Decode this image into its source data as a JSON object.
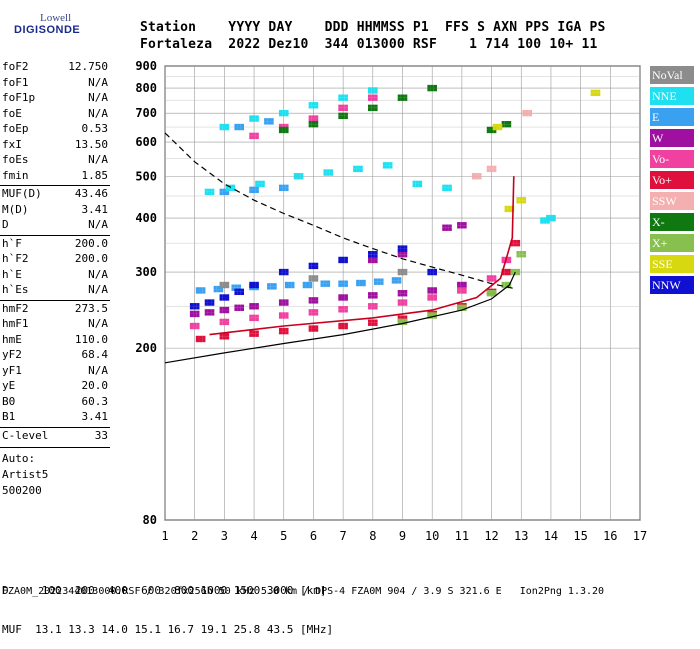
{
  "logo": {
    "top": "Lowell",
    "bottom": "DIGISONDE"
  },
  "header": {
    "labels_line": "Station    YYYY DAY    DDD HHMMSS P1  FFS S AXN PPS IGA PS",
    "values_line": "Fortaleza  2022 Dez10  344 013000 RSF    1 714 100 10+ 11"
  },
  "params": [
    {
      "name": "foF2",
      "value": "12.750"
    },
    {
      "name": "foF1",
      "value": "N/A"
    },
    {
      "name": "foF1p",
      "value": "N/A"
    },
    {
      "name": "foE",
      "value": "N/A"
    },
    {
      "name": "foEp",
      "value": "0.53"
    },
    {
      "name": "fxI",
      "value": "13.50"
    },
    {
      "name": "foEs",
      "value": "N/A"
    },
    {
      "name": "fmin",
      "value": "1.85"
    },
    {
      "name": "MUF(D)",
      "value": "43.46"
    },
    {
      "name": "M(D)",
      "value": "3.41"
    },
    {
      "name": "D",
      "value": "N/A"
    },
    {
      "name": "h`F",
      "value": "200.0"
    },
    {
      "name": "h`F2",
      "value": "200.0"
    },
    {
      "name": "h`E",
      "value": "N/A"
    },
    {
      "name": "h`Es",
      "value": "N/A"
    },
    {
      "name": "hmF2",
      "value": "273.5"
    },
    {
      "name": "hmF1",
      "value": "N/A"
    },
    {
      "name": "hmE",
      "value": "110.0"
    },
    {
      "name": "yF2",
      "value": "68.4"
    },
    {
      "name": "yF1",
      "value": "N/A"
    },
    {
      "name": "yE",
      "value": "20.0"
    },
    {
      "name": "B0",
      "value": "60.3"
    },
    {
      "name": "B1",
      "value": "3.41"
    },
    {
      "name": "C-level",
      "value": "33"
    }
  ],
  "auto": {
    "line1": "Auto:",
    "line2": "Artist5",
    "line3": "500200"
  },
  "legend": [
    {
      "label": "NoVal",
      "color": "#8c8c8c"
    },
    {
      "label": "NNE",
      "color": "#1ee0f0"
    },
    {
      "label": "E",
      "color": "#3aa0f0"
    },
    {
      "label": "W",
      "color": "#a010a0"
    },
    {
      "label": "Vo-",
      "color": "#f040a0"
    },
    {
      "label": "Vo+",
      "color": "#e0103c"
    },
    {
      "label": "SSW",
      "color": "#f4b0b0"
    },
    {
      "label": "X-",
      "color": "#107810"
    },
    {
      "label": "X+",
      "color": "#88c050"
    },
    {
      "label": "SSE",
      "color": "#d8d810"
    },
    {
      "label": "NNW",
      "color": "#1010d0"
    }
  ],
  "footer": {
    "line1": "D     100  200  400  600  800 1000 1500 3000 [km]",
    "line2": "MUF  13.1 13.3 14.0 15.1 16.7 19.1 25.8 43.5 [MHz]",
    "line3": "FZA0M_2022344013000.RSF / 320fx256h 50 kHz 5.0 km / DPS-4 FZA0M 904 / 3.9 S 321.6 E   Ion2Png 1.3.20"
  },
  "chart_data": {
    "type": "scatter",
    "xlim": [
      1,
      17
    ],
    "ylim": [
      80,
      900
    ],
    "x_ticks": [
      1,
      2,
      3,
      4,
      5,
      6,
      7,
      8,
      9,
      10,
      11,
      12,
      13,
      14,
      15,
      16,
      17
    ],
    "y_ticks": [
      80,
      200,
      300,
      400,
      500,
      600,
      700,
      800,
      900
    ],
    "grid": true,
    "y_scale": "log",
    "series": [
      {
        "name": "E",
        "color": "#3aa0f0",
        "points": [
          [
            2.2,
            272
          ],
          [
            2.8,
            274
          ],
          [
            3.4,
            276
          ],
          [
            4.0,
            277
          ],
          [
            4.6,
            278
          ],
          [
            5.2,
            280
          ],
          [
            5.8,
            280
          ],
          [
            6.4,
            282
          ],
          [
            7.0,
            282
          ],
          [
            7.6,
            283
          ],
          [
            8.2,
            285
          ],
          [
            8.8,
            287
          ],
          [
            3.0,
            460
          ],
          [
            4.0,
            465
          ],
          [
            5.0,
            470
          ],
          [
            3.5,
            650
          ],
          [
            4.5,
            670
          ]
        ]
      },
      {
        "name": "NNE",
        "color": "#1ee0f0",
        "points": [
          [
            2.5,
            460
          ],
          [
            3.2,
            470
          ],
          [
            4.2,
            480
          ],
          [
            5.5,
            500
          ],
          [
            6.5,
            510
          ],
          [
            7.5,
            520
          ],
          [
            8.5,
            530
          ],
          [
            9.5,
            480
          ],
          [
            10.5,
            470
          ],
          [
            3.0,
            650
          ],
          [
            4.0,
            680
          ],
          [
            5.0,
            700
          ],
          [
            6.0,
            730
          ],
          [
            7.0,
            760
          ],
          [
            8.0,
            790
          ],
          [
            14.0,
            400
          ],
          [
            13.8,
            395
          ]
        ]
      },
      {
        "name": "W",
        "color": "#a010a0",
        "points": [
          [
            2.0,
            240
          ],
          [
            2.5,
            242
          ],
          [
            3.0,
            245
          ],
          [
            3.5,
            248
          ],
          [
            4.0,
            250
          ],
          [
            5.0,
            255
          ],
          [
            6.0,
            258
          ],
          [
            7.0,
            262
          ],
          [
            8.0,
            265
          ],
          [
            9.0,
            268
          ],
          [
            10.0,
            272
          ],
          [
            11.0,
            280
          ],
          [
            10.5,
            380
          ],
          [
            11.0,
            385
          ],
          [
            8.0,
            320
          ],
          [
            9.0,
            330
          ]
        ]
      },
      {
        "name": "Vo-",
        "color": "#f040a0",
        "points": [
          [
            2.0,
            225
          ],
          [
            3.0,
            230
          ],
          [
            4.0,
            235
          ],
          [
            5.0,
            238
          ],
          [
            6.0,
            242
          ],
          [
            7.0,
            246
          ],
          [
            8.0,
            250
          ],
          [
            9.0,
            255
          ],
          [
            10.0,
            262
          ],
          [
            11.0,
            272
          ],
          [
            12.0,
            290
          ],
          [
            12.5,
            320
          ],
          [
            4.0,
            620
          ],
          [
            5.0,
            650
          ],
          [
            6.0,
            680
          ],
          [
            7.0,
            720
          ],
          [
            8.0,
            760
          ]
        ]
      },
      {
        "name": "Vo+",
        "color": "#e0103c",
        "points": [
          [
            2.2,
            210
          ],
          [
            3.0,
            213
          ],
          [
            4.0,
            216
          ],
          [
            5.0,
            219
          ],
          [
            6.0,
            222
          ],
          [
            7.0,
            225
          ],
          [
            8.0,
            229
          ],
          [
            9.0,
            234
          ],
          [
            10.0,
            240
          ],
          [
            11.0,
            250
          ],
          [
            12.0,
            270
          ],
          [
            12.5,
            300
          ],
          [
            12.8,
            350
          ]
        ]
      },
      {
        "name": "X-",
        "color": "#107810",
        "points": [
          [
            5.0,
            640
          ],
          [
            6.0,
            660
          ],
          [
            7.0,
            690
          ],
          [
            8.0,
            720
          ],
          [
            9.0,
            760
          ],
          [
            10.0,
            800
          ],
          [
            12.0,
            640
          ],
          [
            12.5,
            660
          ]
        ]
      },
      {
        "name": "X+",
        "color": "#88c050",
        "points": [
          [
            9.0,
            230
          ],
          [
            10.0,
            238
          ],
          [
            11.0,
            248
          ],
          [
            12.0,
            268
          ],
          [
            12.5,
            280
          ],
          [
            12.8,
            300
          ],
          [
            13.0,
            330
          ]
        ]
      },
      {
        "name": "NNW",
        "color": "#1010d0",
        "points": [
          [
            2.0,
            250
          ],
          [
            2.5,
            255
          ],
          [
            3.0,
            262
          ],
          [
            3.5,
            270
          ],
          [
            4.0,
            280
          ],
          [
            5.0,
            300
          ],
          [
            6.0,
            310
          ],
          [
            7.0,
            320
          ],
          [
            8.0,
            330
          ],
          [
            9.0,
            340
          ],
          [
            10.0,
            300
          ]
        ]
      },
      {
        "name": "SSE",
        "color": "#d8d810",
        "points": [
          [
            12.6,
            420
          ],
          [
            13.0,
            440
          ],
          [
            12.2,
            650
          ],
          [
            15.5,
            780
          ]
        ]
      },
      {
        "name": "SSW",
        "color": "#f4b0b0",
        "points": [
          [
            11.5,
            500
          ],
          [
            12.0,
            520
          ],
          [
            13.2,
            700
          ]
        ]
      },
      {
        "name": "NoVal",
        "color": "#8c8c8c",
        "points": [
          [
            3.0,
            280
          ],
          [
            6.0,
            290
          ],
          [
            9.0,
            300
          ]
        ]
      }
    ],
    "profile_curve": [
      [
        1.0,
        185
      ],
      [
        3.0,
        195
      ],
      [
        5.0,
        205
      ],
      [
        7.0,
        215
      ],
      [
        9.0,
        228
      ],
      [
        11.0,
        245
      ],
      [
        12.0,
        260
      ],
      [
        12.6,
        280
      ],
      [
        12.8,
        300
      ]
    ],
    "muf_curve": [
      [
        1.0,
        630
      ],
      [
        2.0,
        540
      ],
      [
        3.0,
        480
      ],
      [
        4.0,
        440
      ],
      [
        5.0,
        410
      ],
      [
        6.0,
        385
      ],
      [
        7.0,
        360
      ],
      [
        8.0,
        340
      ],
      [
        9.0,
        322
      ],
      [
        10.0,
        308
      ],
      [
        11.0,
        295
      ],
      [
        12.0,
        282
      ],
      [
        12.75,
        275
      ]
    ],
    "trace_curve": [
      [
        2.5,
        215
      ],
      [
        5.0,
        225
      ],
      [
        8.0,
        235
      ],
      [
        10.0,
        245
      ],
      [
        11.5,
        262
      ],
      [
        12.3,
        290
      ],
      [
        12.7,
        360
      ],
      [
        12.75,
        500
      ]
    ]
  }
}
